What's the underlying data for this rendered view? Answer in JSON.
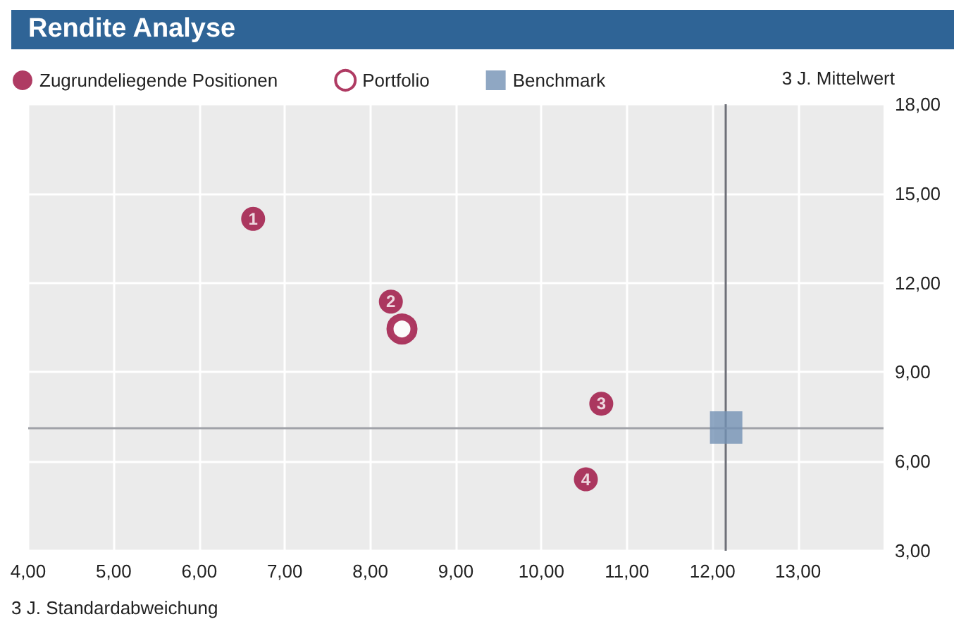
{
  "chart_data": {
    "type": "scatter",
    "title": "Rendite Analyse",
    "xlabel": "3 J. Standardabweichung",
    "ylabel": "3 J. Mittelwert",
    "xlim": [
      4,
      14
    ],
    "xticks": [
      {
        "value": 4,
        "label": "4,00"
      },
      {
        "value": 5,
        "label": "5,00"
      },
      {
        "value": 6,
        "label": "6,00"
      },
      {
        "value": 7,
        "label": "7,00"
      },
      {
        "value": 8,
        "label": "8,00"
      },
      {
        "value": 9,
        "label": "9,00"
      },
      {
        "value": 10,
        "label": "10,00"
      },
      {
        "value": 11,
        "label": "11,00"
      },
      {
        "value": 12,
        "label": "12,00"
      },
      {
        "value": 13,
        "label": "13,00"
      }
    ],
    "ylim": [
      3,
      18
    ],
    "yticks": [
      {
        "value": 3,
        "label": "3,00"
      },
      {
        "value": 6,
        "label": "6,00"
      },
      {
        "value": 9,
        "label": "9,00"
      },
      {
        "value": 12,
        "label": "12,00"
      },
      {
        "value": 15,
        "label": "15,00"
      },
      {
        "value": 18,
        "label": "18,00"
      }
    ],
    "grid": true,
    "legend": "top left",
    "series": [
      {
        "name": "Zugrundeliegende Positionen",
        "color": "#9b0a3c",
        "marker": "circle",
        "x": [
          6.63,
          8.24,
          10.7,
          10.52
        ],
        "values": [
          14.15,
          11.37,
          7.94,
          5.4
        ]
      },
      {
        "name": "Portfolio",
        "color": "#9b0a3c",
        "marker": "circle",
        "x": [
          8.37
        ],
        "values": [
          10.45
        ]
      },
      {
        "name": "Benchmark",
        "color": "#7391b4",
        "marker": "square",
        "x": [
          12.16
        ],
        "values": [
          7.14
        ]
      }
    ],
    "annotations": [
      {
        "text": "1",
        "x": 6.63,
        "y": 14.15
      },
      {
        "text": "2",
        "x": 8.24,
        "y": 11.37
      },
      {
        "text": "3",
        "x": 10.7,
        "y": 7.94
      },
      {
        "text": "4",
        "x": 10.52,
        "y": 5.4
      }
    ],
    "ref_lines": [
      {
        "axis": "x",
        "value": 12.15,
        "color": "#6e7078"
      },
      {
        "axis": "y",
        "value": 7.15,
        "color": "#a0a2a8"
      }
    ]
  }
}
